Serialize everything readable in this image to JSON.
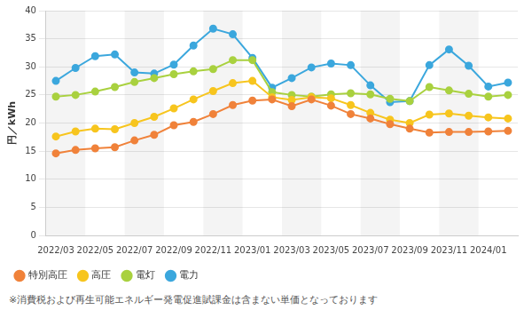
{
  "chart_data": {
    "type": "line",
    "y_label": "円／kWh",
    "annotation": "※消費税および再生可能エネルギー発電促進賦課金は含まない単価となっております",
    "categories": [
      "2022/03",
      null,
      "2022/05",
      null,
      "2022/07",
      null,
      "2022/09",
      null,
      "2022/11",
      null,
      "2023/01",
      null,
      "2023/03",
      null,
      "2023/05",
      null,
      "2023/07",
      null,
      "2023/09",
      null,
      "2023/11",
      null,
      "2024/01",
      null
    ],
    "series": [
      {
        "name": "特別高圧",
        "color": "#f0823a",
        "values": [
          14.6,
          15.2,
          15.5,
          15.7,
          16.9,
          17.9,
          19.6,
          20.2,
          21.6,
          23.2,
          24.0,
          24.2,
          23.0,
          24.2,
          23.1,
          21.6,
          20.8,
          19.8,
          19.0,
          18.3,
          18.4,
          18.4,
          18.5,
          18.6
        ]
      },
      {
        "name": "高圧",
        "color": "#f7c51e",
        "values": [
          17.6,
          18.5,
          19.0,
          18.9,
          20.0,
          21.1,
          22.6,
          24.2,
          25.7,
          27.1,
          27.5,
          24.6,
          24.1,
          24.6,
          24.4,
          23.2,
          21.8,
          20.6,
          20.0,
          21.5,
          21.7,
          21.3,
          21.0,
          20.8
        ]
      },
      {
        "name": "電灯",
        "color": "#a9d13f",
        "values": [
          24.7,
          25.0,
          25.6,
          26.4,
          27.3,
          28.0,
          28.7,
          29.2,
          29.6,
          31.2,
          31.2,
          25.5,
          25.0,
          24.7,
          25.1,
          25.3,
          25.1,
          24.3,
          23.9,
          26.4,
          25.8,
          25.2,
          24.7,
          25.0
        ]
      },
      {
        "name": "電力",
        "color": "#3ba7dd",
        "values": [
          27.5,
          29.8,
          31.9,
          32.2,
          29.0,
          28.8,
          30.4,
          33.8,
          36.8,
          35.8,
          31.6,
          26.3,
          28.0,
          29.9,
          30.6,
          30.3,
          26.7,
          23.7,
          23.9,
          30.3,
          33.1,
          30.2,
          26.5,
          27.2
        ]
      }
    ],
    "ylim": [
      0,
      40
    ],
    "yticks": [
      0,
      5,
      10,
      15,
      20,
      25,
      30,
      35,
      40
    ],
    "grid": true,
    "legend": "bottom",
    "marker": "circle",
    "line_style": "solid"
  }
}
